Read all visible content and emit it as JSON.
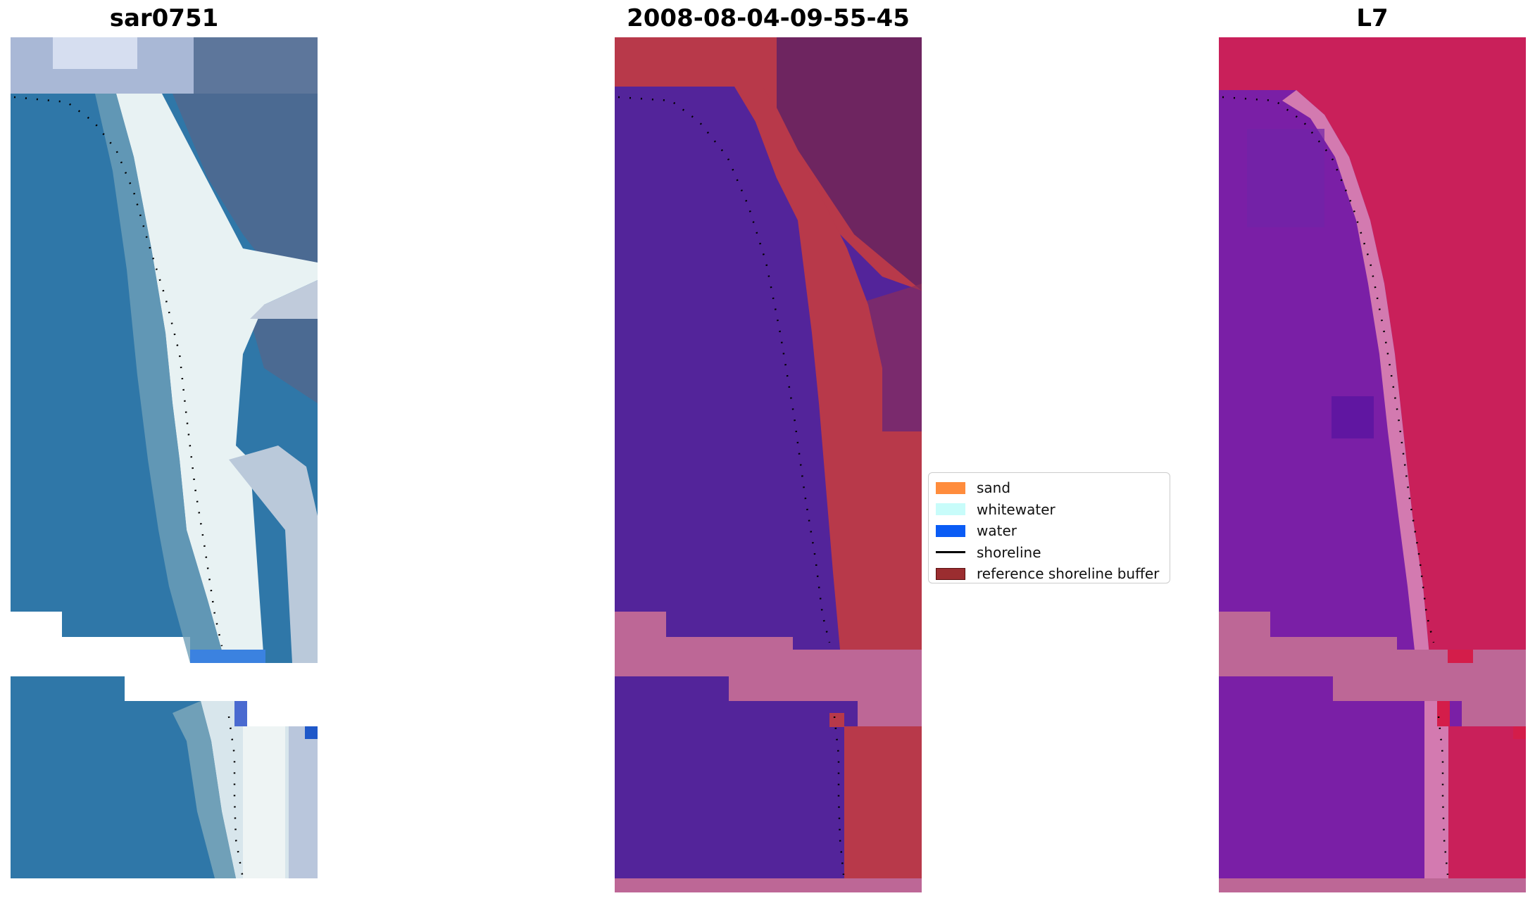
{
  "panels": [
    {
      "id": "rgb",
      "title": "sar0751"
    },
    {
      "id": "classified",
      "title": "2008-08-04-09-55-45"
    },
    {
      "id": "index",
      "title": "L7"
    }
  ],
  "legend": {
    "items": [
      {
        "label": "sand",
        "color": "#ff8c3c",
        "kind": "patch"
      },
      {
        "label": "whitewater",
        "color": "#c8fcfa",
        "kind": "patch"
      },
      {
        "label": "water",
        "color": "#0a5cf5",
        "kind": "patch"
      },
      {
        "label": "shoreline",
        "color": "#000000",
        "kind": "line"
      },
      {
        "label": "reference shoreline buffer",
        "color": "#9b2d30",
        "kind": "patch",
        "edge": "#5a1010"
      }
    ]
  },
  "colors": {
    "rgb_water": "#2f77a8",
    "rgb_surf": "#e8f0f4",
    "rgb_land": "#4a6790",
    "class_water": "#53249a",
    "class_buffer": "#b8394a",
    "class_land": "#6e2560",
    "nodata": "#bd6796",
    "index_water": "#7a1fa6",
    "index_land": "#c9205a"
  }
}
